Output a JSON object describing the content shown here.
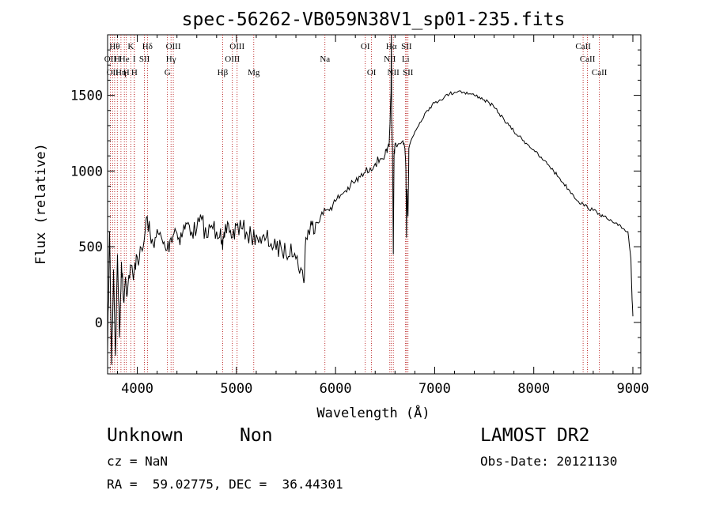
{
  "chart_data": {
    "type": "line",
    "title": "spec-56262-VB059N38V1_sp01-235.fits",
    "xlabel": "Wavelength (Å)",
    "ylabel": "Flux (relative)",
    "xlim": [
      3700,
      9080
    ],
    "ylim": [
      -340,
      1900
    ],
    "xticks": [
      4000,
      5000,
      6000,
      7000,
      8000,
      9000
    ],
    "yticks": [
      0,
      500,
      1000,
      1500
    ],
    "grid": false,
    "series": [
      {
        "name": "",
        "color": "#000000",
        "x": [
          3700,
          3720,
          3740,
          3760,
          3780,
          3800,
          3820,
          3840,
          3860,
          3880,
          3900,
          3930,
          3960,
          3990,
          4020,
          4060,
          4100,
          4140,
          4180,
          4220,
          4260,
          4300,
          4340,
          4380,
          4420,
          4460,
          4500,
          4550,
          4600,
          4650,
          4700,
          4750,
          4800,
          4840,
          4861,
          4880,
          4920,
          4960,
          5000,
          5050,
          5100,
          5150,
          5200,
          5250,
          5300,
          5350,
          5400,
          5450,
          5500,
          5550,
          5600,
          5650,
          5680,
          5700,
          5730,
          5760,
          5800,
          5850,
          5900,
          5950,
          6000,
          6050,
          6100,
          6150,
          6200,
          6250,
          6300,
          6350,
          6400,
          6450,
          6500,
          6520,
          6540,
          6560,
          6563,
          6566,
          6575,
          6583,
          6590,
          6600,
          6620,
          6650,
          6680,
          6700,
          6710,
          6716,
          6720,
          6731,
          6740,
          6760,
          6800,
          6850,
          6900,
          6950,
          7000,
          7050,
          7100,
          7150,
          7200,
          7250,
          7300,
          7350,
          7400,
          7450,
          7500,
          7550,
          7600,
          7650,
          7700,
          7750,
          7800,
          7850,
          7900,
          7950,
          8000,
          8050,
          8100,
          8150,
          8200,
          8250,
          8300,
          8350,
          8400,
          8450,
          8500,
          8542,
          8600,
          8662,
          8700,
          8750,
          8800,
          8850,
          8900,
          8950,
          8980,
          8990,
          9000
        ],
        "y": [
          -200,
          600,
          -280,
          350,
          -220,
          450,
          -100,
          400,
          150,
          300,
          200,
          380,
          280,
          450,
          420,
          500,
          700,
          520,
          560,
          580,
          520,
          480,
          560,
          620,
          560,
          600,
          650,
          600,
          620,
          680,
          560,
          640,
          600,
          620,
          480,
          560,
          650,
          560,
          640,
          620,
          600,
          560,
          580,
          520,
          560,
          520,
          480,
          500,
          450,
          520,
          420,
          360,
          260,
          560,
          600,
          640,
          660,
          700,
          740,
          760,
          800,
          840,
          870,
          900,
          930,
          960,
          990,
          1020,
          1050,
          1080,
          1110,
          1120,
          1160,
          1520,
          1900,
          1350,
          1150,
          450,
          1100,
          1180,
          1160,
          1180,
          1200,
          1150,
          1000,
          560,
          880,
          700,
          1150,
          1200,
          1260,
          1320,
          1380,
          1420,
          1450,
          1470,
          1490,
          1510,
          1520,
          1530,
          1520,
          1510,
          1500,
          1490,
          1470,
          1450,
          1420,
          1380,
          1340,
          1300,
          1260,
          1230,
          1200,
          1170,
          1140,
          1100,
          1070,
          1040,
          1000,
          960,
          920,
          880,
          840,
          800,
          780,
          760,
          740,
          720,
          700,
          680,
          660,
          640,
          620,
          600,
          420,
          200,
          40
        ]
      }
    ],
    "lines": [
      {
        "x": 3727,
        "label": "OII",
        "row": 1
      },
      {
        "x": 3750,
        "label": "OII",
        "row": 2
      },
      {
        "x": 3771,
        "label": "Hθ",
        "row": 0
      },
      {
        "x": 3798,
        "label": "H",
        "row": 1
      },
      {
        "x": 3835,
        "label": "Hη",
        "row": 2
      },
      {
        "x": 3869,
        "label": "He",
        "row": 1
      },
      {
        "x": 3889,
        "label": "H",
        "row": 2
      },
      {
        "x": 3934,
        "label": "K",
        "row": 0
      },
      {
        "x": 3969,
        "label": "I",
        "row": 1
      },
      {
        "x": 3970,
        "label": "H",
        "row": 2
      },
      {
        "x": 4072,
        "label": "SII",
        "row": 1
      },
      {
        "x": 4102,
        "label": "Hδ",
        "row": 0
      },
      {
        "x": 4304,
        "label": "G",
        "row": 2
      },
      {
        "x": 4340,
        "label": "Hγ",
        "row": 1
      },
      {
        "x": 4363,
        "label": "OIII",
        "row": 0
      },
      {
        "x": 4861,
        "label": "Hβ",
        "row": 2
      },
      {
        "x": 4959,
        "label": "OIII",
        "row": 1
      },
      {
        "x": 5007,
        "label": "OIII",
        "row": 0
      },
      {
        "x": 5175,
        "label": "Mg",
        "row": 2
      },
      {
        "x": 5893,
        "label": "Na",
        "row": 1
      },
      {
        "x": 6300,
        "label": "OI",
        "row": 0
      },
      {
        "x": 6363,
        "label": "OI",
        "row": 2
      },
      {
        "x": 6548,
        "label": "NII",
        "row": 1
      },
      {
        "x": 6563,
        "label": "Hα",
        "row": 0
      },
      {
        "x": 6583,
        "label": "NII",
        "row": 2
      },
      {
        "x": 6707,
        "label": "Li",
        "row": 1
      },
      {
        "x": 6716,
        "label": "SII",
        "row": 0
      },
      {
        "x": 6731,
        "label": "SII",
        "row": 2
      },
      {
        "x": 8498,
        "label": "CaII",
        "row": 0
      },
      {
        "x": 8542,
        "label": "CaII",
        "row": 1
      },
      {
        "x": 8662,
        "label": "CaII",
        "row": 2
      }
    ]
  },
  "footer": {
    "class_label": "Unknown",
    "subclass_label": "Non",
    "survey_label": "LAMOST DR2",
    "redshift_text": "cz = NaN",
    "obs_date_text": "Obs-Date: 20121130",
    "coords_text": "RA =  59.02775, DEC =  36.44301"
  }
}
